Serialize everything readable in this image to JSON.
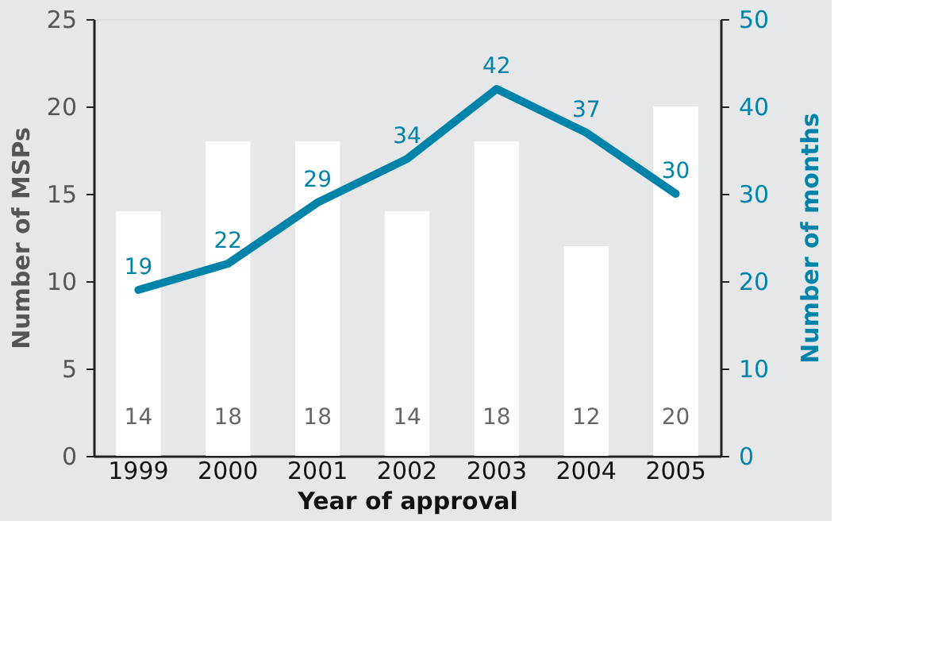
{
  "chart_data": {
    "type": "bar",
    "categories": [
      "1999",
      "2000",
      "2001",
      "2002",
      "2003",
      "2004",
      "2005"
    ],
    "xlabel": "Year of approval",
    "ylabel": "Number of MSPs",
    "y2label": "Number of months",
    "series": [
      {
        "color": "#ffffff",
        "values": [
          14,
          18,
          18,
          14,
          18,
          12,
          20
        ]
      },
      {
        "type": "line",
        "color": "#0083a9",
        "axis": "y2",
        "values": [
          19,
          22,
          29,
          34,
          42,
          37,
          30
        ]
      }
    ],
    "ylim": [
      0,
      25
    ],
    "yticks": [
      0,
      5,
      10,
      15,
      20,
      25
    ],
    "y2lim": [
      0,
      50
    ],
    "y2ticks": [
      0,
      10,
      20,
      30,
      40,
      50
    ],
    "data_labels": true,
    "grid": false
  }
}
